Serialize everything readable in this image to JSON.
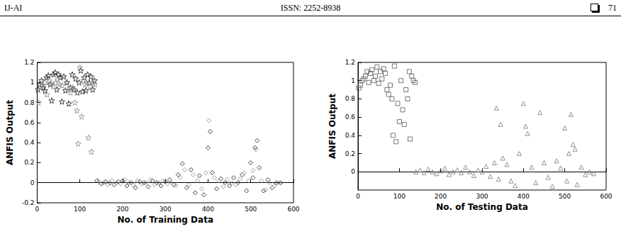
{
  "header": {
    "journal": "IJ-AI",
    "issn": "ISSN: 2252-8938",
    "page": "71"
  },
  "chart_data": [
    {
      "type": "scatter",
      "x_label": "No. of Training Data",
      "y_label": "ANFIS Output",
      "xlim": [
        0,
        600
      ],
      "xticks": [
        0,
        100,
        200,
        300,
        400,
        500,
        600
      ],
      "ylim": [
        -0.2,
        1.2
      ],
      "yticks": [
        -0.2,
        0,
        0.2,
        0.4,
        0.6,
        0.8,
        1,
        1.2
      ],
      "grid": false,
      "series": [
        {
          "color": "#111111",
          "marker": "star",
          "x": [
            2,
            6,
            10,
            14,
            18,
            22,
            26,
            30,
            34,
            38,
            42,
            46,
            50,
            54,
            58,
            62,
            66,
            70,
            74,
            78,
            82,
            86,
            90,
            94,
            98,
            102,
            106,
            110,
            114,
            118,
            122,
            126,
            130,
            134
          ],
          "values": [
            0.93,
            0.98,
            1.02,
            0.95,
            0.92,
            1.05,
            1.07,
            0.98,
            0.82,
            1.08,
            1.1,
            0.93,
            1.08,
            1.05,
            0.81,
            1.06,
            0.92,
            1.0,
            0.79,
            0.95,
            1.08,
            0.93,
            1.04,
            0.9,
            1.0,
            1.12,
            0.91,
            1.05,
            0.92,
            1.08,
            1.0,
            1.06,
            0.93,
            1.02
          ]
        },
        {
          "color": "#888888",
          "marker": "star",
          "x": [
            3,
            8,
            13,
            18,
            23,
            28,
            33,
            38,
            43,
            48,
            53,
            58,
            63,
            68,
            73,
            78,
            83,
            88,
            93,
            96,
            100,
            104,
            108,
            112,
            116,
            120,
            124,
            127,
            131,
            135
          ],
          "values": [
            0.8,
            0.95,
            0.97,
            1.0,
            0.88,
            1.02,
            0.99,
            0.96,
            1.0,
            1.03,
            0.98,
            0.97,
            1.06,
            1.0,
            0.93,
            0.9,
            0.95,
            0.8,
            0.72,
            0.39,
            1.15,
            0.66,
            1.02,
            0.98,
            1.0,
            0.45,
            0.96,
            0.31,
            1.0,
            0.98
          ]
        },
        {
          "color": "#111111",
          "marker": "diamond",
          "x": [
            140,
            150,
            160,
            170,
            180,
            190,
            200,
            210,
            220,
            230,
            240,
            250,
            260,
            270,
            280,
            290,
            300,
            310,
            320,
            330,
            340,
            350,
            360,
            370,
            380,
            390,
            400,
            405,
            410,
            420,
            430,
            440,
            450,
            460,
            470,
            480,
            490,
            500,
            505,
            510,
            515,
            520,
            530,
            540,
            550,
            560,
            570
          ],
          "values": [
            0.02,
            -0.01,
            0.01,
            0.0,
            -0.02,
            0.01,
            0.02,
            -0.03,
            0.0,
            -0.05,
            0.01,
            0.0,
            -0.04,
            0.02,
            0.0,
            -0.03,
            0.01,
            0.03,
            -0.02,
            0.08,
            0.19,
            -0.05,
            0.13,
            -0.1,
            0.07,
            -0.12,
            0.35,
            0.51,
            0.1,
            -0.06,
            0.04,
            0.0,
            -0.03,
            0.05,
            0.0,
            0.08,
            -0.08,
            0.2,
            0.05,
            0.35,
            0.42,
            0.15,
            -0.08,
            0.03,
            -0.05,
            0.0,
            0.0
          ]
        },
        {
          "color": "#888888",
          "marker": "diamond",
          "x": [
            145,
            155,
            165,
            175,
            185,
            195,
            205,
            215,
            225,
            235,
            245,
            255,
            265,
            275,
            285,
            295,
            305,
            315,
            325,
            335,
            345,
            355,
            365,
            375,
            385,
            395,
            402,
            415,
            425,
            435,
            445,
            455,
            465,
            475,
            485,
            495,
            505,
            512,
            525,
            535,
            545,
            555,
            565
          ],
          "values": [
            0.01,
            0.0,
            -0.02,
            0.02,
            0.0,
            -0.01,
            0.03,
            0.0,
            -0.02,
            0.02,
            -0.01,
            0.0,
            0.03,
            -0.02,
            0.0,
            0.02,
            -0.01,
            0.0,
            -0.03,
            0.05,
            0.13,
            -0.02,
            0.08,
            0.02,
            -0.06,
            0.1,
            0.62,
            0.05,
            0.02,
            -0.04,
            0.03,
            0.0,
            -0.02,
            0.04,
            0.1,
            0.02,
            0.12,
            0.33,
            0.02,
            -0.07,
            0.0,
            -0.03,
            0.0
          ]
        }
      ]
    },
    {
      "type": "scatter",
      "x_label": "No. of Testing Data",
      "y_label": "ANFIS Output",
      "xlim": [
        0,
        600
      ],
      "xticks": [
        0,
        100,
        200,
        300,
        400,
        500,
        600
      ],
      "ylim": [
        -0.2,
        1.2
      ],
      "yticks": [
        0,
        0.2,
        0.4,
        0.6,
        0.8,
        1,
        1.2
      ],
      "grid": false,
      "series": [
        {
          "color": "#555555",
          "marker": "square",
          "x": [
            2,
            6,
            10,
            14,
            18,
            22,
            26,
            30,
            34,
            38,
            42,
            46,
            50,
            54,
            58,
            62,
            66,
            70,
            74,
            78,
            82,
            85,
            88,
            92,
            96,
            100,
            104,
            108,
            112,
            116,
            120,
            124,
            126,
            130,
            134,
            138
          ],
          "values": [
            0.92,
            0.95,
            1.0,
            1.02,
            1.05,
            1.1,
            0.98,
            1.08,
            1.12,
            1.0,
            1.05,
            1.15,
            0.97,
            1.1,
            1.02,
            1.13,
            1.08,
            0.9,
            0.85,
            0.95,
            0.8,
            0.4,
            1.16,
            0.33,
            0.75,
            0.55,
            1.0,
            0.68,
            0.52,
            0.9,
            0.8,
            1.1,
            0.36,
            1.05,
            1.0,
            0.98
          ]
        },
        {
          "color": "#777777",
          "marker": "triangle",
          "x": [
            140,
            150,
            160,
            170,
            180,
            190,
            200,
            210,
            220,
            230,
            240,
            250,
            260,
            270,
            280,
            290,
            300,
            310,
            320,
            330,
            335,
            340,
            345,
            350,
            360,
            370,
            380,
            390,
            400,
            405,
            410,
            420,
            430,
            440,
            450,
            460,
            470,
            480,
            490,
            500,
            505,
            510,
            515,
            520,
            525,
            530,
            540,
            550,
            560,
            570
          ],
          "values": [
            0.0,
            0.02,
            -0.01,
            0.03,
            0.0,
            -0.02,
            0.01,
            0.04,
            -0.03,
            0.0,
            0.02,
            -0.01,
            0.05,
            0.0,
            -0.04,
            0.02,
            0.0,
            0.06,
            -0.05,
            0.1,
            0.7,
            -0.08,
            0.52,
            0.15,
            0.08,
            -0.1,
            -0.15,
            0.2,
            0.75,
            0.5,
            0.42,
            0.05,
            -0.12,
            0.65,
            0.1,
            -0.06,
            -0.16,
            0.12,
            0.04,
            0.48,
            -0.1,
            0.2,
            0.63,
            0.3,
            0.25,
            -0.14,
            0.05,
            -0.03,
            0.0,
            -0.02
          ]
        }
      ]
    }
  ]
}
